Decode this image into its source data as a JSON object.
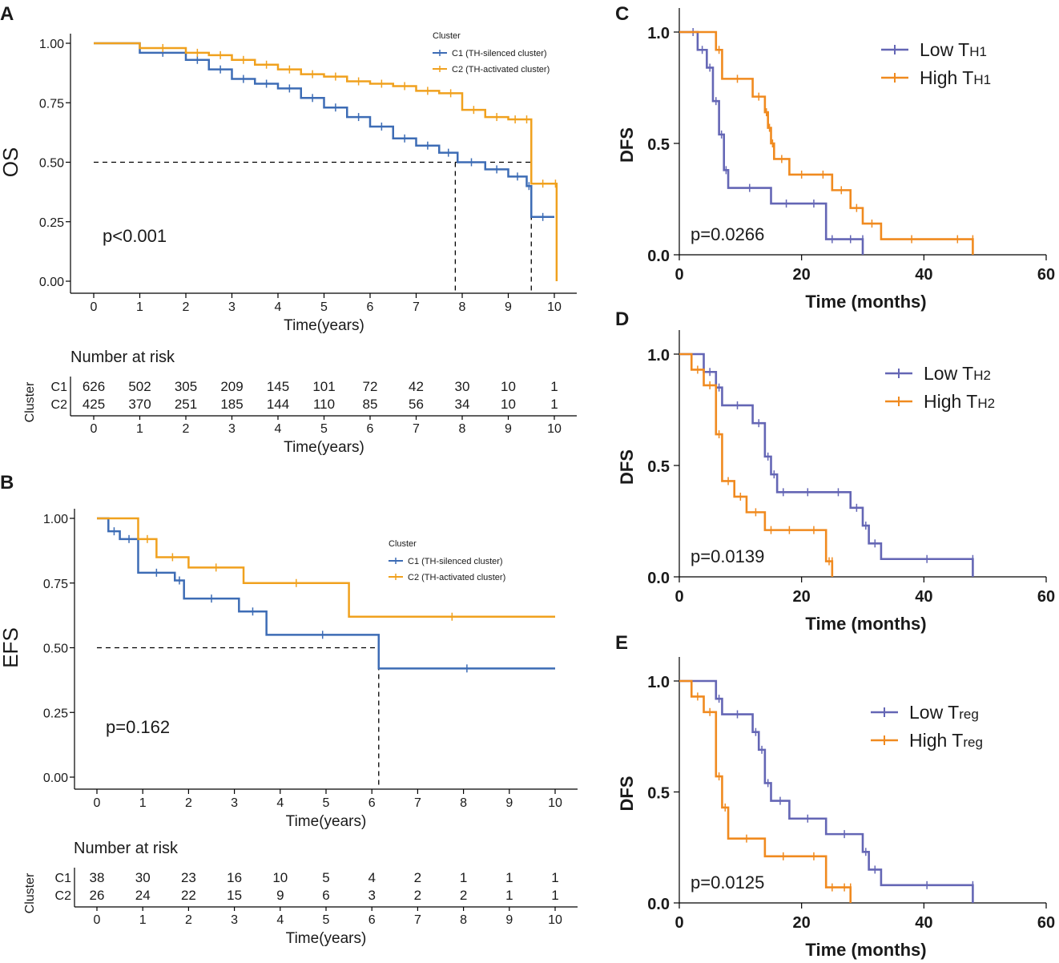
{
  "colors": {
    "c1": "#3d6cb5",
    "c2": "#f0a11e",
    "low": "#6466b5",
    "high": "#f08a1f"
  },
  "chart_data": [
    {
      "panel": "A",
      "type": "line",
      "ylabel": "OS",
      "xlabel": "Time(years)",
      "xlim": [
        0,
        10
      ],
      "ylim": [
        0,
        1
      ],
      "xticks": [
        "0",
        "1",
        "2",
        "3",
        "4",
        "5",
        "6",
        "7",
        "8",
        "9",
        "10"
      ],
      "yticks": [
        "0.00",
        "0.25",
        "0.50",
        "0.75",
        "1.00"
      ],
      "pvalue": "p<0.001",
      "legend_title": "Cluster",
      "series": [
        {
          "name": "C1",
          "desc": "(TH-silenced cluster)",
          "x": [
            0,
            1,
            2,
            2.5,
            3,
            3.5,
            4,
            4.5,
            5,
            5.5,
            6,
            6.5,
            7,
            7.5,
            7.9,
            8.5,
            9,
            9.4,
            9.5,
            10
          ],
          "y": [
            1.0,
            0.96,
            0.93,
            0.89,
            0.85,
            0.83,
            0.81,
            0.77,
            0.73,
            0.69,
            0.65,
            0.6,
            0.57,
            0.54,
            0.5,
            0.47,
            0.44,
            0.4,
            0.27,
            0.27
          ]
        },
        {
          "name": "C2",
          "desc": "(TH-activated cluster)",
          "x": [
            0,
            1,
            2,
            2.5,
            3,
            3.5,
            4,
            4.5,
            5,
            5.5,
            6,
            6.5,
            7,
            7.5,
            8,
            8.5,
            9,
            9.3,
            9.5,
            10,
            10.05
          ],
          "y": [
            1.0,
            0.98,
            0.96,
            0.95,
            0.93,
            0.91,
            0.89,
            0.87,
            0.86,
            0.84,
            0.83,
            0.82,
            0.8,
            0.79,
            0.72,
            0.69,
            0.68,
            0.68,
            0.41,
            0.41,
            0.0
          ]
        }
      ],
      "median": [
        {
          "x": 7.85,
          "y": 0.5
        },
        {
          "x": 9.5,
          "y": 0.5
        }
      ],
      "risk_table": {
        "title": "Number at risk",
        "label": "Cluster",
        "C1": [
          "626",
          "502",
          "305",
          "209",
          "145",
          "101",
          "72",
          "42",
          "30",
          "10",
          "1"
        ],
        "C2": [
          "425",
          "370",
          "251",
          "185",
          "144",
          "110",
          "85",
          "56",
          "34",
          "10",
          "1"
        ]
      }
    },
    {
      "panel": "B",
      "type": "line",
      "ylabel": "EFS",
      "xlabel": "Time(years)",
      "xlim": [
        0,
        10
      ],
      "ylim": [
        0,
        1
      ],
      "xticks": [
        "0",
        "1",
        "2",
        "3",
        "4",
        "5",
        "6",
        "7",
        "8",
        "9",
        "10"
      ],
      "yticks": [
        "0.00",
        "0.25",
        "0.50",
        "0.75",
        "1.00"
      ],
      "pvalue": "p=0.162",
      "legend_title": "Cluster",
      "series": [
        {
          "name": "C1",
          "desc": "(TH-silenced cluster)",
          "x": [
            0,
            0.25,
            0.5,
            0.9,
            1.7,
            1.9,
            3.1,
            3.7,
            6.15,
            10
          ],
          "y": [
            1.0,
            0.95,
            0.92,
            0.79,
            0.76,
            0.69,
            0.64,
            0.55,
            0.42,
            0.42
          ]
        },
        {
          "name": "C2",
          "desc": "(TH-activated cluster)",
          "x": [
            0,
            0.9,
            1.3,
            2.0,
            3.2,
            5.5,
            10
          ],
          "y": [
            1.0,
            0.92,
            0.85,
            0.81,
            0.75,
            0.62,
            0.62
          ]
        }
      ],
      "median": [
        {
          "x": 6.15,
          "y": 0.5
        }
      ],
      "risk_table": {
        "title": "Number at risk",
        "label": "Cluster",
        "C1": [
          "38",
          "30",
          "23",
          "16",
          "10",
          "5",
          "4",
          "2",
          "1",
          "1",
          "1"
        ],
        "C2": [
          "26",
          "24",
          "22",
          "15",
          "9",
          "6",
          "3",
          "2",
          "2",
          "1",
          "1"
        ]
      }
    },
    {
      "panel": "C",
      "type": "line",
      "ylabel": "DFS",
      "xlabel": "Time (months)",
      "xlim": [
        0,
        60
      ],
      "ylim": [
        0,
        1
      ],
      "xticks": [
        "0",
        "20",
        "40",
        "60"
      ],
      "yticks": [
        "0.0",
        "0.5",
        "1.0"
      ],
      "pvalue": "p=0.0266",
      "series": [
        {
          "name": "Low",
          "sub": "TH1",
          "x": [
            0,
            1.5,
            3,
            4.5,
            5.5,
            6.5,
            7.3,
            8,
            15,
            20,
            24,
            26,
            30,
            30
          ],
          "y": [
            1.0,
            1.0,
            0.92,
            0.84,
            0.69,
            0.54,
            0.38,
            0.3,
            0.23,
            0.23,
            0.07,
            0.07,
            0.07,
            0
          ]
        },
        {
          "name": "High",
          "sub": "TH1",
          "x": [
            0,
            6,
            7,
            12,
            14,
            14.5,
            15,
            15.5,
            18,
            22,
            25,
            28,
            30,
            33,
            43,
            48,
            48
          ],
          "y": [
            1.0,
            0.92,
            0.79,
            0.71,
            0.64,
            0.57,
            0.5,
            0.43,
            0.36,
            0.36,
            0.29,
            0.21,
            0.14,
            0.07,
            0.07,
            0.07,
            0
          ]
        }
      ]
    },
    {
      "panel": "D",
      "type": "line",
      "ylabel": "DFS",
      "xlabel": "Time (months)",
      "xlim": [
        0,
        60
      ],
      "ylim": [
        0,
        1
      ],
      "xticks": [
        "0",
        "20",
        "40",
        "60"
      ],
      "yticks": [
        "0.0",
        "0.5",
        "1.0"
      ],
      "pvalue": "p=0.0139",
      "series": [
        {
          "name": "Low",
          "sub": "TH2",
          "x": [
            0,
            4,
            6,
            7,
            12,
            14,
            15,
            16,
            18,
            24,
            28,
            30,
            31,
            33,
            48,
            48
          ],
          "y": [
            1.0,
            0.92,
            0.85,
            0.77,
            0.69,
            0.54,
            0.46,
            0.38,
            0.38,
            0.38,
            0.31,
            0.23,
            0.15,
            0.08,
            0.08,
            0
          ]
        },
        {
          "name": "High",
          "sub": "TH2",
          "x": [
            0,
            2,
            4,
            6,
            7,
            9,
            11,
            14,
            16,
            20,
            24,
            25,
            25
          ],
          "y": [
            1.0,
            0.93,
            0.86,
            0.64,
            0.43,
            0.36,
            0.29,
            0.21,
            0.21,
            0.21,
            0.07,
            0.07,
            0
          ]
        }
      ]
    },
    {
      "panel": "E",
      "type": "line",
      "ylabel": "DFS",
      "xlabel": "Time (months)",
      "xlim": [
        0,
        60
      ],
      "ylim": [
        0,
        1
      ],
      "xticks": [
        "0",
        "20",
        "40",
        "60"
      ],
      "yticks": [
        "0.0",
        "0.5",
        "1.0"
      ],
      "pvalue": "p=0.0125",
      "series": [
        {
          "name": "Low",
          "sub": "reg",
          "x": [
            0,
            6,
            7,
            12,
            13,
            14,
            15,
            18,
            24,
            30,
            31,
            33,
            48,
            48
          ],
          "y": [
            1.0,
            0.92,
            0.85,
            0.77,
            0.69,
            0.54,
            0.46,
            0.38,
            0.31,
            0.23,
            0.15,
            0.08,
            0.08,
            0
          ]
        },
        {
          "name": "High",
          "sub": "reg",
          "x": [
            0,
            2,
            4,
            6,
            7,
            8,
            14,
            20,
            24,
            26,
            28,
            28
          ],
          "y": [
            1.0,
            0.93,
            0.86,
            0.57,
            0.43,
            0.29,
            0.21,
            0.21,
            0.07,
            0.07,
            0.07,
            0
          ]
        }
      ]
    }
  ]
}
